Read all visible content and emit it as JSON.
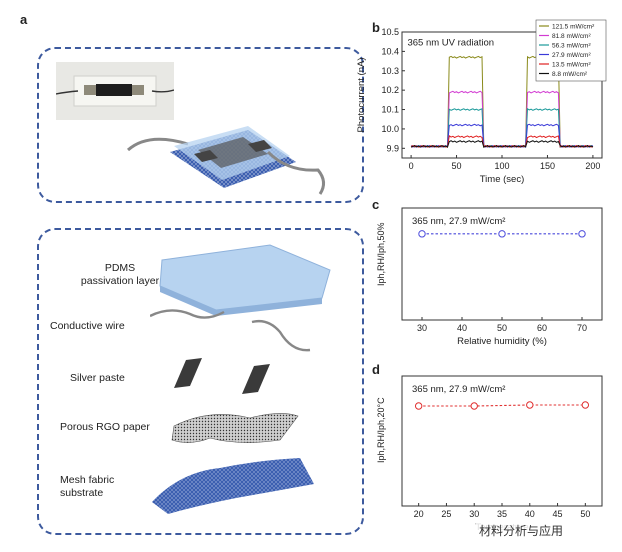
{
  "panels": {
    "a": {
      "letter": "a"
    },
    "b": {
      "letter": "b"
    },
    "c": {
      "letter": "c"
    },
    "d": {
      "letter": "d"
    }
  },
  "layers": [
    {
      "label": "PDMS\npassivation layer"
    },
    {
      "label": "Conductive wire"
    },
    {
      "label": "Silver paste"
    },
    {
      "label": "Porous RGO paper"
    },
    {
      "label": "Mesh fabric\nsubstrate"
    }
  ],
  "watermark": "材料分析与应用",
  "chart_data": [
    {
      "type": "line",
      "panel": "b",
      "annotation": "365 nm UV radiation",
      "xlabel": "Time (sec)",
      "ylabel": "Photocurrent (nA)",
      "xlim": [
        -10,
        210
      ],
      "ylim": [
        9.85,
        10.5
      ],
      "xticks": [
        0,
        50,
        100,
        150,
        200
      ],
      "yticks": [
        9.9,
        10.0,
        10.1,
        10.2,
        10.3,
        10.4,
        10.5
      ],
      "on_intervals": [
        [
          42,
          78
        ],
        [
          128,
          162
        ]
      ],
      "baseline": 9.91,
      "legend_position": "top-right",
      "series": [
        {
          "name": "121.5 mW/cm²",
          "on_value": 10.37,
          "color": "#8a8a1a"
        },
        {
          "name": "81.8 mW/cm²",
          "on_value": 10.19,
          "color": "#d23bd2"
        },
        {
          "name": "56.3 mW/cm²",
          "on_value": 10.1,
          "color": "#1a9a9a"
        },
        {
          "name": "27.9 mW/cm²",
          "on_value": 10.02,
          "color": "#3a3ad8"
        },
        {
          "name": "13.5 mW/cm²",
          "on_value": 9.96,
          "color": "#e02020"
        },
        {
          "name": "8.8 mW/cm²",
          "on_value": 9.935,
          "color": "#111111"
        }
      ]
    },
    {
      "type": "scatter",
      "panel": "c",
      "annotation": "365 nm, 27.9 mW/cm²",
      "xlabel": "Relative humidity (%)",
      "ylabel": "Iph,RH/Iph,50%",
      "xlim": [
        25,
        75
      ],
      "ylim": [
        0,
        1.3
      ],
      "xticks": [
        30,
        40,
        50,
        60,
        70
      ],
      "x": [
        30,
        50,
        70
      ],
      "y": [
        1.0,
        1.0,
        1.0
      ],
      "color": "#4a4adc"
    },
    {
      "type": "scatter",
      "panel": "d",
      "annotation": "365 nm, 27.9 mW/cm²",
      "xlabel": "Temperature",
      "ylabel": "Iph,RH/Iph,20°C",
      "xlim": [
        17,
        53
      ],
      "ylim": [
        0,
        1.3
      ],
      "xticks": [
        20,
        25,
        30,
        35,
        40,
        45,
        50
      ],
      "x": [
        20,
        30,
        40,
        50
      ],
      "y": [
        1.0,
        1.0,
        1.01,
        1.01
      ],
      "color": "#e03030"
    }
  ]
}
